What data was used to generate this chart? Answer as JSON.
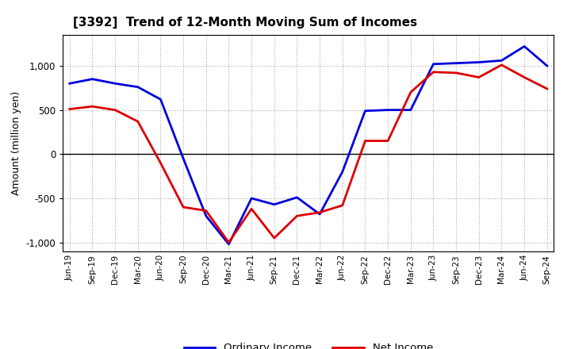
{
  "title": "[3392]  Trend of 12-Month Moving Sum of Incomes",
  "ylabel": "Amount (million yen)",
  "ylim": [
    -1100,
    1350
  ],
  "yticks": [
    -1000,
    -500,
    0,
    500,
    1000
  ],
  "background_color": "#ffffff",
  "ordinary_income_color": "#0000dd",
  "net_income_color": "#dd0000",
  "line_width": 2.0,
  "x_labels": [
    "Jun-19",
    "Sep-19",
    "Dec-19",
    "Mar-20",
    "Jun-20",
    "Sep-20",
    "Dec-20",
    "Mar-21",
    "Jun-21",
    "Sep-21",
    "Dec-21",
    "Mar-22",
    "Jun-22",
    "Sep-22",
    "Dec-22",
    "Mar-23",
    "Jun-23",
    "Sep-23",
    "Dec-23",
    "Mar-24",
    "Jun-24",
    "Sep-24"
  ],
  "ordinary_income": [
    800,
    850,
    800,
    760,
    620,
    -50,
    -700,
    -1020,
    -500,
    -570,
    -490,
    -680,
    -200,
    490,
    500,
    500,
    1020,
    1030,
    1040,
    1060,
    1220,
    1000
  ],
  "net_income": [
    510,
    540,
    500,
    370,
    -100,
    -600,
    -640,
    -1000,
    -620,
    -950,
    -700,
    -660,
    -580,
    150,
    150,
    700,
    930,
    920,
    870,
    1010,
    870,
    740
  ],
  "legend_labels": [
    "Ordinary Income",
    "Net Income"
  ]
}
